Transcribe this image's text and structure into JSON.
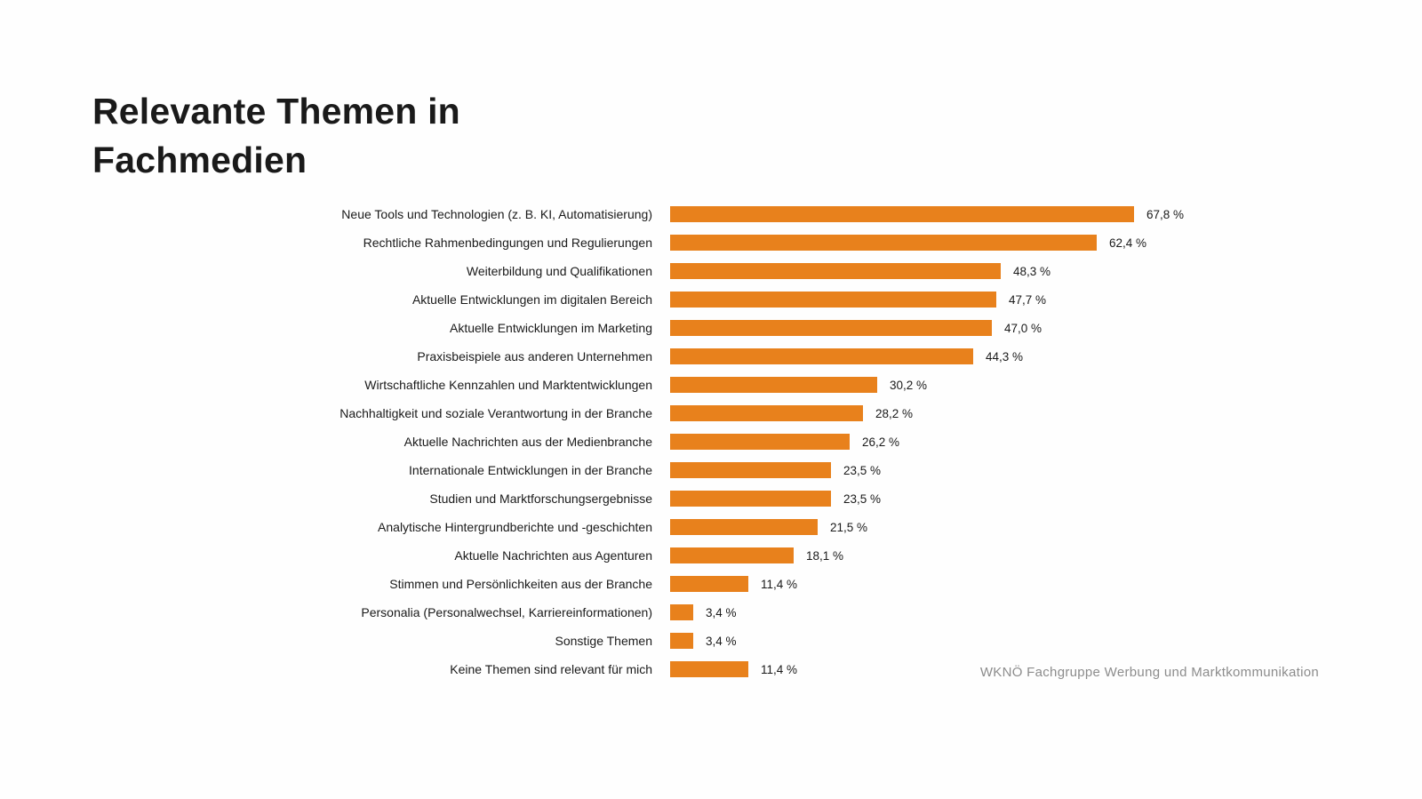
{
  "title": "Relevante Themen in Fachmedien",
  "title_lines": [
    "Relevante Themen in",
    "Fachmedien"
  ],
  "footer": "WKNÖ Fachgruppe Werbung und Marktkommunikation",
  "colors": {
    "bar": "#e8811c",
    "title_text": "#1a1a1a",
    "label_text": "#1a1a1a",
    "footer_text": "#8c8c8c",
    "background": "#fefefe"
  },
  "chart_data": {
    "type": "bar",
    "orientation": "horizontal",
    "title": "Relevante Themen in Fachmedien",
    "xlabel": "",
    "ylabel": "",
    "xlim": [
      0,
      70
    ],
    "grid": false,
    "legend": null,
    "value_suffix": " %",
    "decimal_separator": ",",
    "source": "WKNÖ Fachgruppe Werbung und Marktkommunikation",
    "categories": [
      "Neue Tools und Technologien (z. B. KI, Automatisierung)",
      "Rechtliche Rahmenbedingungen und Regulierungen",
      "Weiterbildung und Qualifikationen",
      "Aktuelle Entwicklungen im digitalen Bereich",
      "Aktuelle Entwicklungen im Marketing",
      "Praxisbeispiele aus anderen Unternehmen",
      "Wirtschaftliche Kennzahlen und Marktentwicklungen",
      "Nachhaltigkeit und soziale Verantwortung in der Branche",
      "Aktuelle Nachrichten aus der Medienbranche",
      "Internationale Entwicklungen in der Branche",
      "Studien und Marktforschungsergebnisse",
      "Analytische Hintergrundberichte und -geschichten",
      "Aktuelle Nachrichten aus Agenturen",
      "Stimmen und Persönlichkeiten aus der Branche",
      "Personalia (Personalwechsel, Karriereinformationen)",
      "Sonstige Themen",
      "Keine Themen sind relevant für mich"
    ],
    "values": [
      67.8,
      62.4,
      48.3,
      47.7,
      47.0,
      44.3,
      30.2,
      28.2,
      26.2,
      23.5,
      23.5,
      21.5,
      18.1,
      11.4,
      3.4,
      3.4,
      11.4
    ],
    "value_labels": [
      "67,8 %",
      "62,4 %",
      "48,3 %",
      "47,7 %",
      "47,0 %",
      "44,3 %",
      "30,2 %",
      "28,2 %",
      "26,2 %",
      "23,5 %",
      "23,5 %",
      "21,5 %",
      "18,1 %",
      "11,4 %",
      "3,4 %",
      "3,4 %",
      "11,4 %"
    ]
  }
}
